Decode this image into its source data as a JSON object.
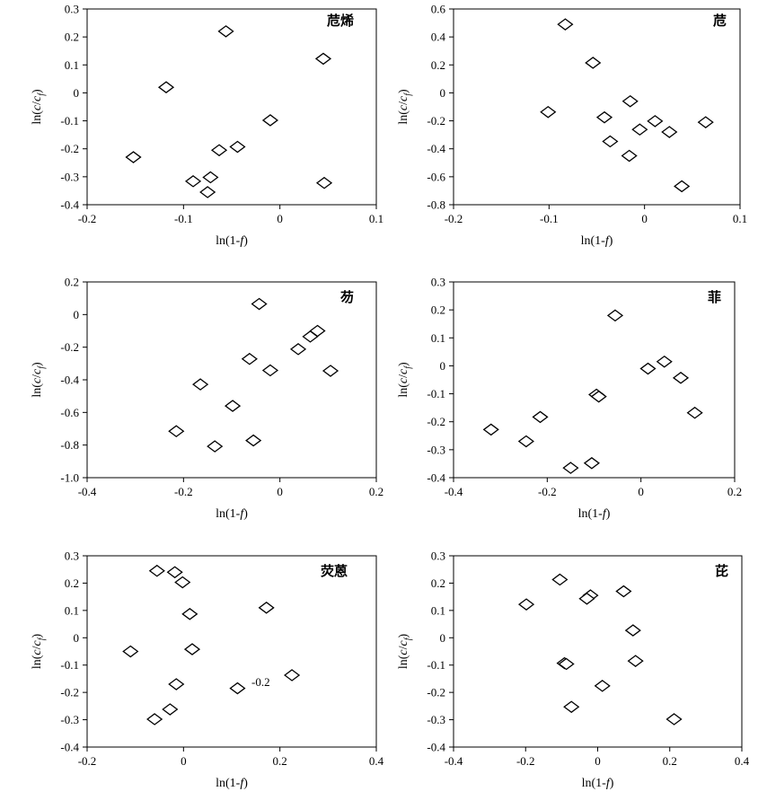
{
  "figure": {
    "xlabel": "ln(1-f)",
    "ylabel": "ln(c/c_f)"
  },
  "chart_data": [
    {
      "type": "scatter",
      "title": "苊烯",
      "xlim": [
        -0.2,
        0.1
      ],
      "ylim": [
        -0.4,
        0.3
      ],
      "xticks": [
        -0.2,
        -0.1,
        0,
        0.1
      ],
      "yticks": [
        -0.4,
        -0.3,
        -0.2,
        -0.1,
        0,
        0.1,
        0.2,
        0.3
      ],
      "xtick_labels": [
        "-0.2",
        "-0.1",
        "0",
        "0.1"
      ],
      "ytick_labels": [
        "-0.4",
        "-0.3",
        "-0.2",
        "-0.1",
        "0",
        "0.1",
        "0.2",
        "0.3"
      ],
      "points": [
        {
          "x": -0.152,
          "y": -0.23
        },
        {
          "x": -0.118,
          "y": 0.02
        },
        {
          "x": -0.09,
          "y": -0.316
        },
        {
          "x": -0.075,
          "y": -0.355
        },
        {
          "x": -0.072,
          "y": -0.302
        },
        {
          "x": -0.063,
          "y": -0.205
        },
        {
          "x": -0.056,
          "y": 0.22
        },
        {
          "x": -0.044,
          "y": -0.193
        },
        {
          "x": -0.01,
          "y": -0.098
        },
        {
          "x": 0.045,
          "y": 0.122
        },
        {
          "x": 0.046,
          "y": -0.322
        }
      ]
    },
    {
      "type": "scatter",
      "title": "苊",
      "xlim": [
        -0.2,
        0.1
      ],
      "ylim": [
        -0.8,
        0.6
      ],
      "xticks": [
        -0.2,
        -0.1,
        0,
        0.1
      ],
      "yticks": [
        -0.8,
        -0.6,
        -0.4,
        -0.2,
        0,
        0.2,
        0.4,
        0.6
      ],
      "xtick_labels": [
        "-0.2",
        "-0.1",
        "0",
        "0.1"
      ],
      "ytick_labels": [
        "-0.8",
        "-0.6",
        "-0.4",
        "-0.2",
        "0",
        "0.2",
        "0.4",
        "0.6"
      ],
      "points": [
        {
          "x": -0.083,
          "y": 0.49
        },
        {
          "x": -0.054,
          "y": 0.215
        },
        {
          "x": -0.101,
          "y": -0.137
        },
        {
          "x": -0.015,
          "y": -0.06
        },
        {
          "x": -0.042,
          "y": -0.175
        },
        {
          "x": 0.011,
          "y": -0.202
        },
        {
          "x": 0.064,
          "y": -0.21
        },
        {
          "x": -0.005,
          "y": -0.262
        },
        {
          "x": 0.026,
          "y": -0.28
        },
        {
          "x": -0.036,
          "y": -0.347
        },
        {
          "x": -0.016,
          "y": -0.45
        },
        {
          "x": 0.039,
          "y": -0.668
        }
      ]
    },
    {
      "type": "scatter",
      "title": "芴",
      "xlim": [
        -0.4,
        0.2
      ],
      "ylim": [
        -1.0,
        0.2
      ],
      "xticks": [
        -0.4,
        -0.2,
        0,
        0.2
      ],
      "yticks": [
        -1.0,
        -0.8,
        -0.6,
        -0.4,
        -0.2,
        0,
        0.2
      ],
      "xtick_labels": [
        "-0.4",
        "-0.2",
        "0",
        "0.2"
      ],
      "ytick_labels": [
        "-1.0",
        "-0.8",
        "-0.6",
        "-0.4",
        "-0.2",
        "0",
        "0.2"
      ],
      "points": [
        {
          "x": -0.043,
          "y": 0.065
        },
        {
          "x": 0.078,
          "y": -0.1
        },
        {
          "x": 0.063,
          "y": -0.135
        },
        {
          "x": 0.038,
          "y": -0.212
        },
        {
          "x": -0.063,
          "y": -0.272
        },
        {
          "x": -0.02,
          "y": -0.342
        },
        {
          "x": 0.105,
          "y": -0.345
        },
        {
          "x": -0.165,
          "y": -0.428
        },
        {
          "x": -0.098,
          "y": -0.56
        },
        {
          "x": -0.215,
          "y": -0.715
        },
        {
          "x": -0.055,
          "y": -0.772
        },
        {
          "x": -0.135,
          "y": -0.808
        }
      ]
    },
    {
      "type": "scatter",
      "title": "菲",
      "xlim": [
        -0.4,
        0.2
      ],
      "ylim": [
        -0.4,
        0.3
      ],
      "xticks": [
        -0.4,
        -0.2,
        0,
        0.2
      ],
      "yticks": [
        -0.4,
        -0.3,
        -0.2,
        -0.1,
        0,
        0.1,
        0.2,
        0.3
      ],
      "xtick_labels": [
        "-0.4",
        "-0.2",
        "0",
        "0.2"
      ],
      "ytick_labels": [
        "-0.4",
        "-0.3",
        "-0.2",
        "-0.1",
        "0",
        "0.1",
        "0.2",
        "0.3"
      ],
      "points": [
        {
          "x": -0.055,
          "y": 0.18
        },
        {
          "x": 0.05,
          "y": 0.015
        },
        {
          "x": 0.015,
          "y": -0.01
        },
        {
          "x": 0.085,
          "y": -0.043
        },
        {
          "x": -0.095,
          "y": -0.103
        },
        {
          "x": -0.09,
          "y": -0.11
        },
        {
          "x": 0.115,
          "y": -0.168
        },
        {
          "x": -0.215,
          "y": -0.183
        },
        {
          "x": -0.32,
          "y": -0.228
        },
        {
          "x": -0.245,
          "y": -0.27
        },
        {
          "x": -0.105,
          "y": -0.348
        },
        {
          "x": -0.15,
          "y": -0.365
        }
      ]
    },
    {
      "type": "scatter",
      "title": "荧蒽",
      "xlim": [
        -0.2,
        0.4
      ],
      "ylim": [
        -0.4,
        0.3
      ],
      "xticks": [
        -0.2,
        0,
        0.2,
        0.4
      ],
      "yticks": [
        -0.4,
        -0.3,
        -0.2,
        -0.1,
        0,
        0.1,
        0.2,
        0.3
      ],
      "xtick_labels": [
        "-0.2",
        "0",
        "0.2",
        "0.4"
      ],
      "ytick_labels": [
        "-0.4",
        "-0.3",
        "-0.2",
        "-0.1",
        "0",
        "0.1",
        "0.2",
        "0.3"
      ],
      "annotation": "-0.2",
      "points": [
        {
          "x": -0.055,
          "y": 0.245
        },
        {
          "x": -0.018,
          "y": 0.24
        },
        {
          "x": -0.002,
          "y": 0.203
        },
        {
          "x": 0.013,
          "y": 0.087
        },
        {
          "x": 0.172,
          "y": 0.11
        },
        {
          "x": -0.11,
          "y": -0.05
        },
        {
          "x": 0.018,
          "y": -0.042
        },
        {
          "x": 0.225,
          "y": -0.137
        },
        {
          "x": -0.015,
          "y": -0.17
        },
        {
          "x": 0.112,
          "y": -0.185
        },
        {
          "x": -0.028,
          "y": -0.262
        },
        {
          "x": -0.06,
          "y": -0.298
        }
      ]
    },
    {
      "type": "scatter",
      "title": "芘",
      "xlim": [
        -0.4,
        0.4
      ],
      "ylim": [
        -0.4,
        0.3
      ],
      "xticks": [
        -0.4,
        -0.2,
        0,
        0.2,
        0.4
      ],
      "yticks": [
        -0.4,
        -0.3,
        -0.2,
        -0.1,
        0,
        0.1,
        0.2,
        0.3
      ],
      "xtick_labels": [
        "-0.4",
        "-0.2",
        "0",
        "0.2",
        "0.4"
      ],
      "ytick_labels": [
        "-0.4",
        "-0.3",
        "-0.2",
        "-0.1",
        "0",
        "0.1",
        "0.2",
        "0.3"
      ],
      "points": [
        {
          "x": -0.105,
          "y": 0.213
        },
        {
          "x": 0.072,
          "y": 0.17
        },
        {
          "x": -0.02,
          "y": 0.155
        },
        {
          "x": -0.03,
          "y": 0.143
        },
        {
          "x": -0.198,
          "y": 0.122
        },
        {
          "x": 0.098,
          "y": 0.027
        },
        {
          "x": -0.092,
          "y": -0.093
        },
        {
          "x": -0.087,
          "y": -0.096
        },
        {
          "x": 0.105,
          "y": -0.085
        },
        {
          "x": 0.013,
          "y": -0.176
        },
        {
          "x": -0.073,
          "y": -0.253
        },
        {
          "x": 0.212,
          "y": -0.298
        }
      ]
    }
  ]
}
